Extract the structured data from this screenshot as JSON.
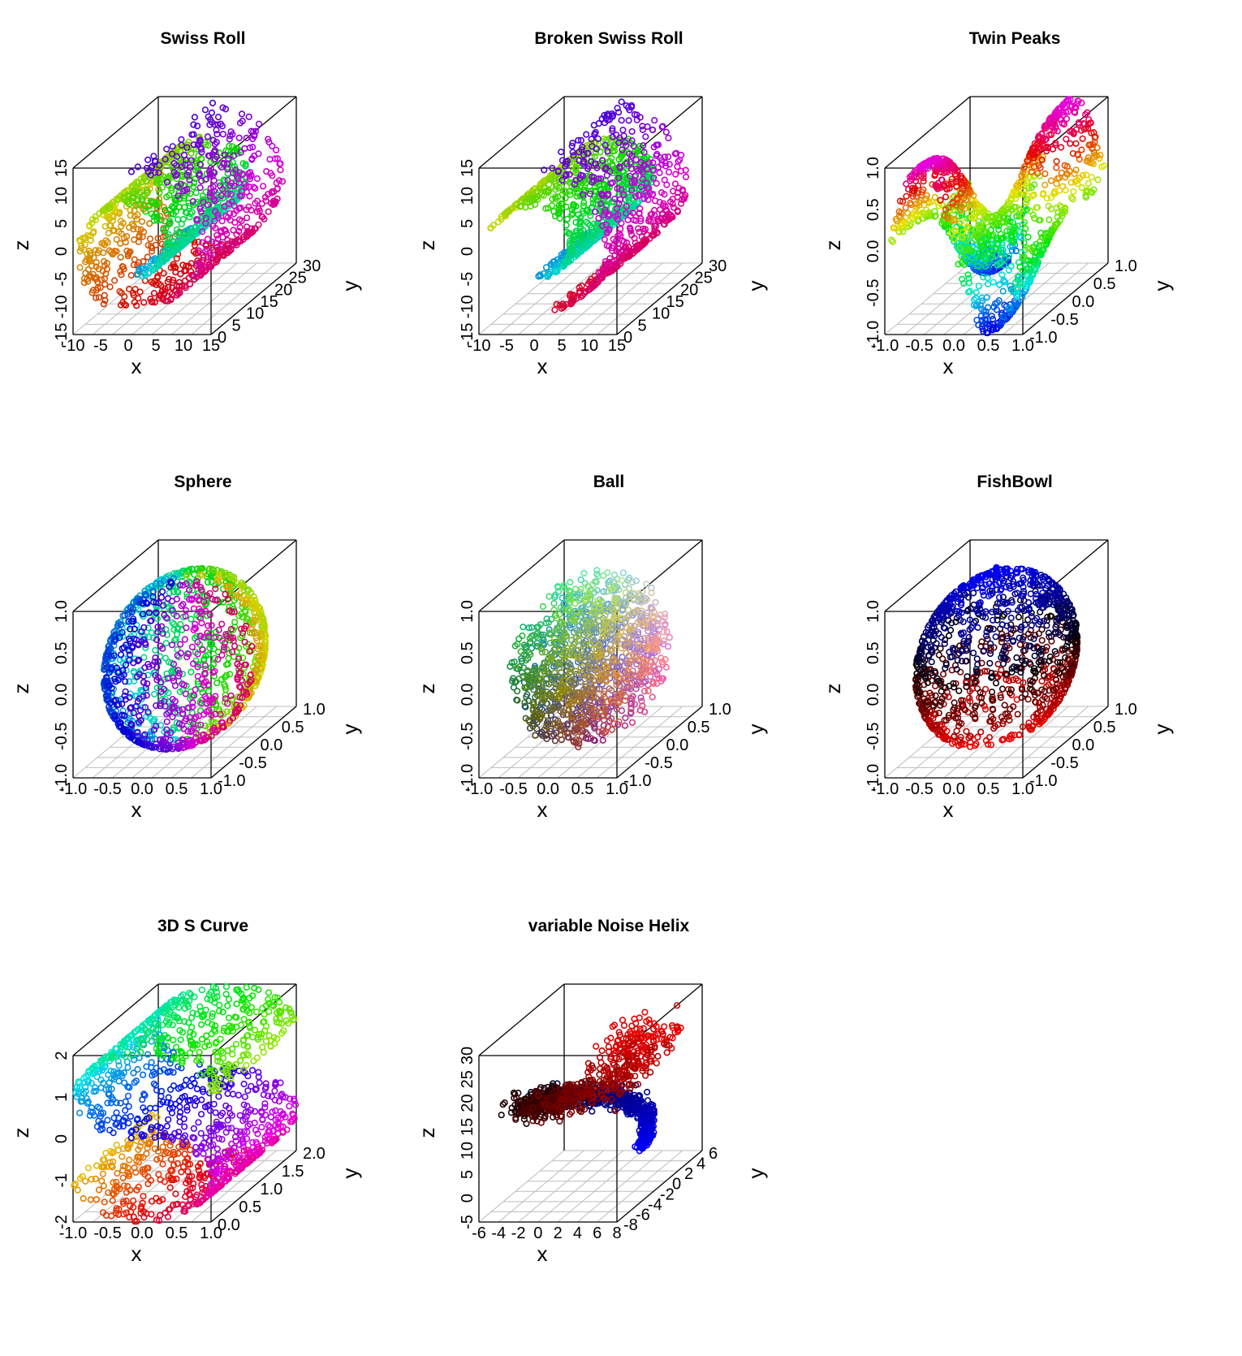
{
  "chart_data": [
    {
      "type": "scatter",
      "manifold": "swissroll",
      "title": "Swiss Roll",
      "xlabel": "x",
      "ylabel": "y",
      "zlabel": "z",
      "xlim": [
        -10,
        15
      ],
      "ylim": [
        0,
        30
      ],
      "zlim": [
        -15,
        15
      ],
      "xticks": [
        "-10",
        "-5",
        "0",
        "5",
        "10",
        "15"
      ],
      "yticks": [
        "0",
        "5",
        "10",
        "15",
        "20",
        "25",
        "30"
      ],
      "zticks": [
        "-15",
        "-10",
        "-5",
        "0",
        "5",
        "10",
        "15"
      ],
      "n_points": 1300,
      "palette": "rainbow"
    },
    {
      "type": "scatter",
      "manifold": "brokenswiss",
      "title": "Broken Swiss Roll",
      "xlabel": "x",
      "ylabel": "y",
      "zlabel": "z",
      "xlim": [
        -10,
        15
      ],
      "ylim": [
        0,
        30
      ],
      "zlim": [
        -15,
        15
      ],
      "xticks": [
        "-10",
        "-5",
        "0",
        "5",
        "10",
        "15"
      ],
      "yticks": [
        "0",
        "5",
        "10",
        "15",
        "20",
        "25",
        "30"
      ],
      "zticks": [
        "-15",
        "-10",
        "-5",
        "0",
        "5",
        "10",
        "15"
      ],
      "n_points": 1300,
      "palette": "rainbow"
    },
    {
      "type": "scatter",
      "manifold": "twinpeaks",
      "title": "Twin Peaks",
      "xlabel": "x",
      "ylabel": "y",
      "zlabel": "z",
      "xlim": [
        -1,
        1
      ],
      "ylim": [
        -1,
        1
      ],
      "zlim": [
        -1,
        1
      ],
      "xticks": [
        "-1.0",
        "-0.5",
        "0.0",
        "0.5",
        "1.0"
      ],
      "yticks": [
        "-1.0",
        "-0.5",
        "0.0",
        "0.5",
        "1.0"
      ],
      "zticks": [
        "-1.0",
        "-0.5",
        "0.0",
        "0.5",
        "1.0"
      ],
      "n_points": 1300,
      "palette": "rainbow"
    },
    {
      "type": "scatter",
      "manifold": "sphere",
      "title": "Sphere",
      "xlabel": "x",
      "ylabel": "y",
      "zlabel": "z",
      "xlim": [
        -1,
        1
      ],
      "ylim": [
        -1,
        1
      ],
      "zlim": [
        -1,
        1
      ],
      "xticks": [
        "-1.0",
        "-0.5",
        "0.0",
        "0.5",
        "1.0"
      ],
      "yticks": [
        "-1.0",
        "-0.5",
        "0.0",
        "0.5",
        "1.0"
      ],
      "zticks": [
        "-1.0",
        "-0.5",
        "0.0",
        "0.5",
        "1.0"
      ],
      "n_points": 1300,
      "palette": "rainbow"
    },
    {
      "type": "scatter",
      "manifold": "ball",
      "title": "Ball",
      "xlabel": "x",
      "ylabel": "y",
      "zlabel": "z",
      "xlim": [
        -1,
        1
      ],
      "ylim": [
        -1,
        1
      ],
      "zlim": [
        -1,
        1
      ],
      "xticks": [
        "-1.0",
        "-0.5",
        "0.0",
        "0.5",
        "1.0"
      ],
      "yticks": [
        "-1.0",
        "-0.5",
        "0.0",
        "0.5",
        "1.0"
      ],
      "zticks": [
        "-1.0",
        "-0.5",
        "0.0",
        "0.5",
        "1.0"
      ],
      "n_points": 1300,
      "palette": "rgb-of-coordinates"
    },
    {
      "type": "scatter",
      "manifold": "fishbowl",
      "title": "FishBowl",
      "xlabel": "x",
      "ylabel": "y",
      "zlabel": "z",
      "xlim": [
        -1,
        1
      ],
      "ylim": [
        -1,
        1
      ],
      "zlim": [
        -1,
        1
      ],
      "xticks": [
        "-1.0",
        "-0.5",
        "0.0",
        "0.5",
        "1.0"
      ],
      "yticks": [
        "-1.0",
        "-0.5",
        "0.0",
        "0.5",
        "1.0"
      ],
      "zticks": [
        "-1.0",
        "-0.5",
        "0.0",
        "0.5",
        "1.0"
      ],
      "n_points": 1300,
      "palette": "blue-black-red"
    },
    {
      "type": "scatter",
      "manifold": "scurve",
      "title": "3D S Curve",
      "xlabel": "x",
      "ylabel": "y",
      "zlabel": "z",
      "xlim": [
        -1,
        1
      ],
      "ylim": [
        0,
        2
      ],
      "zlim": [
        -2,
        2
      ],
      "xticks": [
        "-1.0",
        "-0.5",
        "0.0",
        "0.5",
        "1.0"
      ],
      "yticks": [
        "0.0",
        "0.5",
        "1.0",
        "1.5",
        "2.0"
      ],
      "zticks": [
        "-2",
        "-1",
        "0",
        "1",
        "2"
      ],
      "n_points": 1300,
      "palette": "rainbow"
    },
    {
      "type": "scatter",
      "manifold": "helix",
      "title": "variable Noise Helix",
      "xlabel": "x",
      "ylabel": "y",
      "zlabel": "z",
      "xlim": [
        -6,
        8
      ],
      "ylim": [
        -8,
        6
      ],
      "zlim": [
        -5,
        30
      ],
      "xticks": [
        "-6",
        "-4",
        "-2",
        "0",
        "2",
        "4",
        "6",
        "8"
      ],
      "yticks": [
        "-8",
        "-6",
        "-4",
        "-2",
        "0",
        "2",
        "4",
        "6"
      ],
      "zticks": [
        "-5",
        "0",
        "5",
        "10",
        "15",
        "20",
        "25",
        "30"
      ],
      "n_points": 1300,
      "palette": "blue-black-red"
    }
  ]
}
